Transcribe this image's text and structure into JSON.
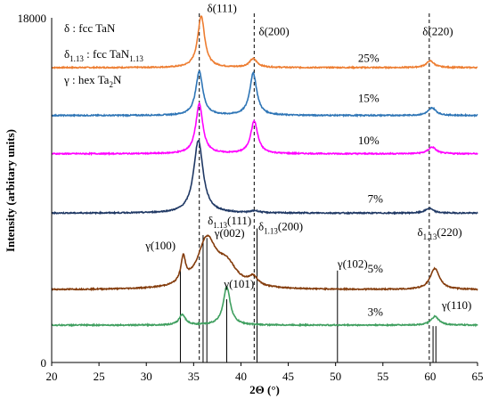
{
  "chart_data": {
    "type": "line",
    "xlabel": "2Θ (°)",
    "ylabel": "Intensity (arbitary units)",
    "xlim": [
      20,
      65
    ],
    "ylim": [
      0,
      18000
    ],
    "x_ticks": [
      20,
      25,
      30,
      35,
      40,
      45,
      50,
      55,
      60,
      65
    ],
    "y_ticks": [
      0,
      18000
    ],
    "legend_lines": [
      {
        "symbol": "δ",
        "sub": "",
        "text": " : fcc TaN",
        "text_sub": ""
      },
      {
        "symbol": "δ",
        "sub": "1.13",
        "text": " : fcc TaN",
        "text_sub": "1.13"
      },
      {
        "symbol": "γ",
        "sub": "",
        "text": " : hex Ta",
        "text_sub": "2",
        "text_after": "N"
      }
    ],
    "series": [
      {
        "name": "25%",
        "color": "#ED7D31",
        "baseline": 15400,
        "peaks": [
          [
            35.8,
            2700,
            0.45
          ],
          [
            41.3,
            450,
            0.5
          ],
          [
            60.0,
            350,
            0.5
          ]
        ]
      },
      {
        "name": "15%",
        "color": "#2E75B6",
        "baseline": 12900,
        "peaks": [
          [
            35.6,
            2300,
            0.45
          ],
          [
            41.3,
            2200,
            0.45
          ],
          [
            60.2,
            400,
            0.5
          ]
        ]
      },
      {
        "name": "10%",
        "color": "#FF00FF",
        "baseline": 10900,
        "peaks": [
          [
            35.6,
            2600,
            0.45
          ],
          [
            41.4,
            1700,
            0.45
          ],
          [
            60.2,
            350,
            0.5
          ]
        ]
      },
      {
        "name": "7%",
        "color": "#1F3864",
        "baseline": 7800,
        "peaks": [
          [
            35.5,
            3800,
            0.6
          ],
          [
            41.5,
            100,
            0.5
          ],
          [
            59.9,
            250,
            0.5
          ]
        ]
      },
      {
        "name": "5%",
        "color": "#843C0C",
        "baseline": 3800,
        "peaks": [
          [
            33.9,
            1300,
            0.3
          ],
          [
            36.4,
            2500,
            1.2
          ],
          [
            38.5,
            1100,
            1.3
          ],
          [
            41.3,
            450,
            0.6
          ],
          [
            60.5,
            1100,
            0.6
          ]
        ]
      },
      {
        "name": "3%",
        "color": "#3F9F5F",
        "baseline": 1950,
        "peaks": [
          [
            33.8,
            550,
            0.4
          ],
          [
            38.5,
            2000,
            0.45
          ],
          [
            60.5,
            450,
            0.5
          ]
        ]
      }
    ],
    "reference_dashed_x": [
      35.6,
      41.4,
      59.9
    ],
    "reference_lines": [
      {
        "x": 36.0,
        "top": 6650
      },
      {
        "x": 36.4,
        "top": 6500
      },
      {
        "x": 41.7,
        "top": 7000
      },
      {
        "x": 60.3,
        "top": 1900
      },
      {
        "x": 33.6,
        "top": 5000
      },
      {
        "x": 38.5,
        "top": 3300
      },
      {
        "x": 50.2,
        "top": 4800
      },
      {
        "x": 60.6,
        "top": 1900
      }
    ],
    "peak_labels": [
      {
        "text": "δ(111)",
        "x": 38.0,
        "y": 18300
      },
      {
        "text": "δ(200)",
        "x": 43.5,
        "y": 17100
      },
      {
        "text": "δ(220)",
        "x": 60.8,
        "y": 17100
      },
      {
        "text": "δ",
        "sub": "1.13",
        "after": "(111)",
        "x": 38.8,
        "y": 7200
      },
      {
        "text": "δ",
        "sub": "1.13",
        "after": "(200)",
        "x": 44.2,
        "y": 6900
      },
      {
        "text": "δ",
        "sub": "1.13",
        "after": "(220)",
        "x": 61.0,
        "y": 6600
      },
      {
        "text": "γ(100)",
        "x": 31.5,
        "y": 5900
      },
      {
        "text": "γ(002)",
        "x": 38.8,
        "y": 6550
      },
      {
        "text": "γ(101)",
        "x": 39.8,
        "y": 3900
      },
      {
        "text": "γ(102)",
        "x": 51.8,
        "y": 4950
      },
      {
        "text": "γ(110)",
        "x": 62.8,
        "y": 2800
      }
    ],
    "percent_labels": [
      {
        "text": "25%",
        "x": 53.5,
        "y": 15700
      },
      {
        "text": "15%",
        "x": 53.5,
        "y": 13600
      },
      {
        "text": "10%",
        "x": 53.5,
        "y": 11400
      },
      {
        "text": "7%",
        "x": 54.2,
        "y": 8350
      },
      {
        "text": "5%",
        "x": 54.2,
        "y": 4700
      },
      {
        "text": "3%",
        "x": 54.2,
        "y": 2450
      }
    ]
  }
}
